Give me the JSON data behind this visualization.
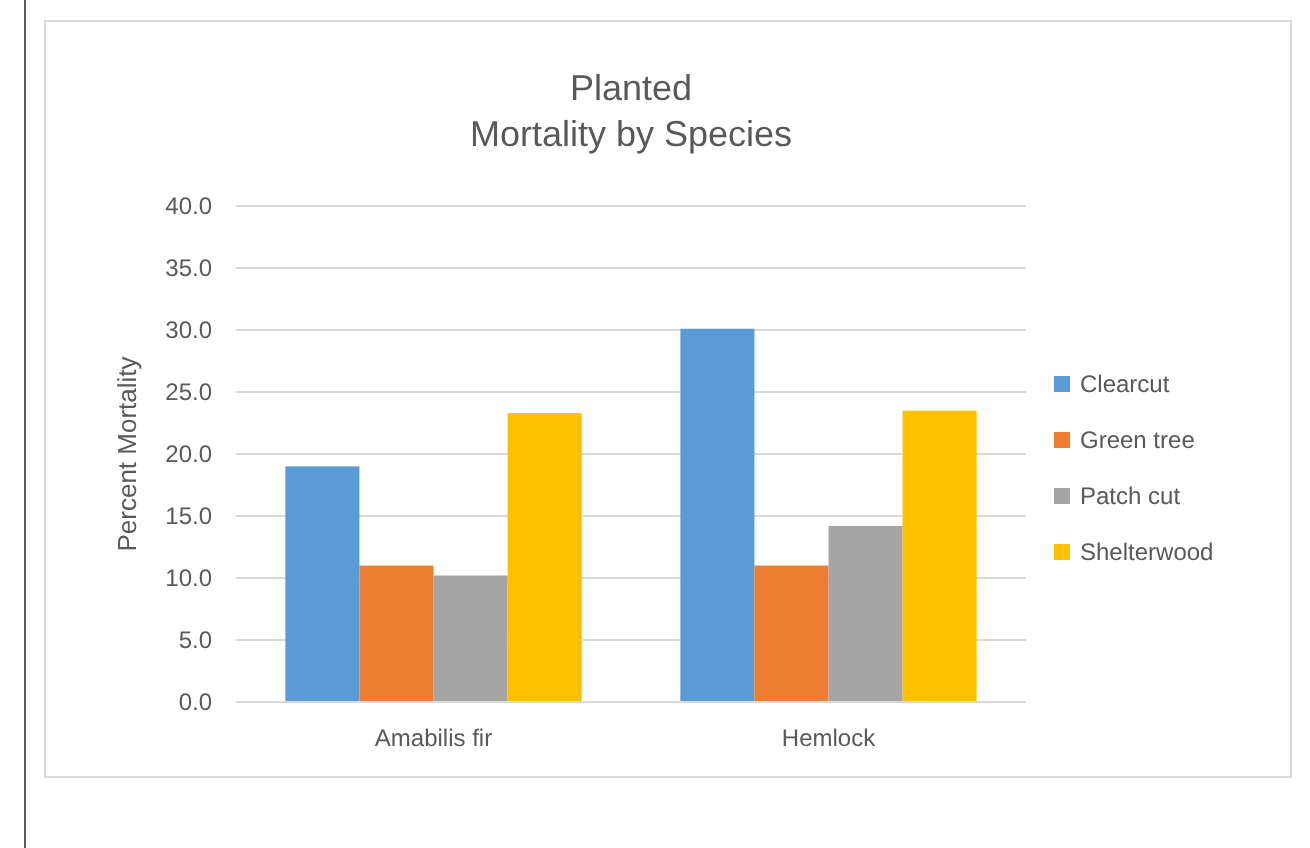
{
  "chart_data": {
    "type": "bar",
    "title": "Planted\nMortality by Species",
    "ylabel": "Percent Mortality",
    "categories": [
      "Amabilis fir",
      "Hemlock"
    ],
    "series": [
      {
        "name": "Clearcut",
        "color": "#5b9bd5",
        "values": [
          19.0,
          30.1
        ]
      },
      {
        "name": "Green tree",
        "color": "#ed7d31",
        "values": [
          11.0,
          11.0
        ]
      },
      {
        "name": "Patch cut",
        "color": "#a5a5a5",
        "values": [
          10.2,
          14.2
        ]
      },
      {
        "name": "Shelterwood",
        "color": "#ffc000",
        "values": [
          23.3,
          23.5
        ]
      }
    ],
    "ylim": [
      0,
      40
    ],
    "yticks": [
      {
        "value": 0,
        "label": "0.0"
      },
      {
        "value": 5,
        "label": "5.0"
      },
      {
        "value": 10,
        "label": "10.0"
      },
      {
        "value": 15,
        "label": "15.0"
      },
      {
        "value": 20,
        "label": "20.0"
      },
      {
        "value": 25,
        "label": "25.0"
      },
      {
        "value": 30,
        "label": "30.0"
      },
      {
        "value": 35,
        "label": "35.0"
      },
      {
        "value": 40,
        "label": "40.0"
      }
    ],
    "grid": "y",
    "legend": "right"
  }
}
